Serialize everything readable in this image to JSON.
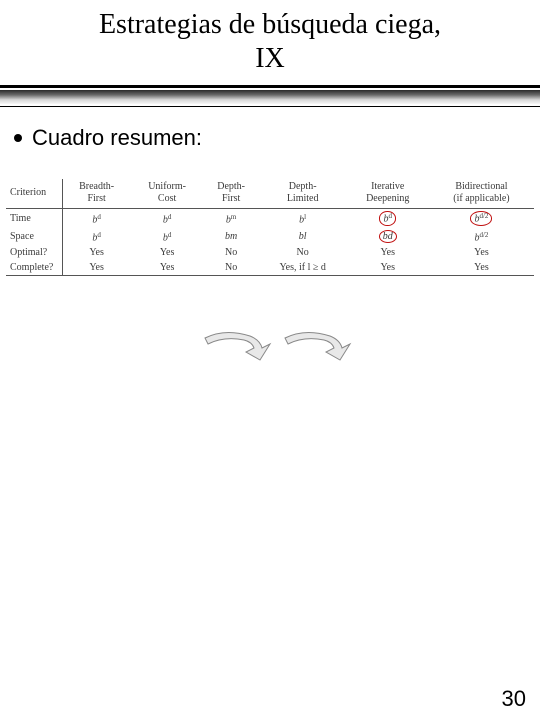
{
  "title_line1": "Estrategias de búsqueda ciega,",
  "title_line2": "IX",
  "subtitle": "Cuadro resumen:",
  "table": {
    "columns": [
      "Criterion",
      "Breadth-\nFirst",
      "Uniform-\nCost",
      "Depth-\nFirst",
      "Depth-\nLimited",
      "Iterative\nDeepening",
      "Bidirectional\n(if applicable)"
    ],
    "rows": [
      {
        "label": "Time",
        "cells": [
          "b^d",
          "b^d",
          "b^m",
          "b^l",
          "b^d",
          "b^{d/2}"
        ]
      },
      {
        "label": "Space",
        "cells": [
          "b^d",
          "b^d",
          "bm",
          "bl",
          "bd",
          "b^{d/2}"
        ]
      },
      {
        "label": "Optimal?",
        "cells": [
          "Yes",
          "Yes",
          "No",
          "No",
          "Yes",
          "Yes"
        ]
      },
      {
        "label": "Complete?",
        "cells": [
          "Yes",
          "Yes",
          "No",
          "Yes, if l ≥ d",
          "Yes",
          "Yes"
        ]
      }
    ],
    "circled_cells": [
      [
        0,
        4
      ],
      [
        0,
        5
      ],
      [
        1,
        4
      ]
    ],
    "header_color": "#3a3a3a",
    "cell_color": "#3a3a3a",
    "border_color": "#555555",
    "circle_color": "#c01010",
    "font_size": 10
  },
  "arrows": {
    "fill": "#e8e8e8",
    "stroke": "#888888"
  },
  "page_number": "30",
  "colors": {
    "background": "#ffffff",
    "title": "#000000",
    "gradient_dark": "#2a2a2a",
    "gradient_light": "#f8f8f8"
  },
  "fonts": {
    "title_family": "Times New Roman",
    "title_size_pt": 28,
    "body_family": "Arial",
    "body_size_pt": 22,
    "table_family": "Times New Roman",
    "table_size_pt": 10
  }
}
